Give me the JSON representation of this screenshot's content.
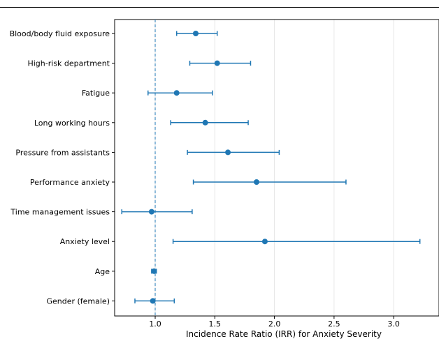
{
  "chart_data": {
    "type": "forest",
    "title": "",
    "xlabel": "Incidence Rate Ratio (IRR) for Anxiety Severity",
    "ylabel": "",
    "xlim": [
      0.66,
      3.38
    ],
    "xticks": [
      1.0,
      1.5,
      2.0,
      2.5,
      3.0
    ],
    "xtick_labels": [
      "1.0",
      "1.5",
      "2.0",
      "2.5",
      "3.0"
    ],
    "reference_line": 1.0,
    "grid": "vertical",
    "color": "#1f77b4",
    "rows": [
      {
        "label": "Blood/body fluid exposure",
        "irr": 1.34,
        "lower": 1.18,
        "upper": 1.52
      },
      {
        "label": "High-risk department",
        "irr": 1.52,
        "lower": 1.29,
        "upper": 1.8
      },
      {
        "label": "Fatigue",
        "irr": 1.18,
        "lower": 0.94,
        "upper": 1.48
      },
      {
        "label": "Long working hours",
        "irr": 1.42,
        "lower": 1.13,
        "upper": 1.78
      },
      {
        "label": "Pressure from assistants",
        "irr": 1.61,
        "lower": 1.27,
        "upper": 2.04
      },
      {
        "label": "Performance anxiety",
        "irr": 1.85,
        "lower": 1.32,
        "upper": 2.6
      },
      {
        "label": "Time management issues",
        "irr": 0.97,
        "lower": 0.72,
        "upper": 1.31
      },
      {
        "label": "Anxiety level",
        "irr": 1.92,
        "lower": 1.15,
        "upper": 3.22
      },
      {
        "label": "Age",
        "irr": 0.99,
        "lower": 0.97,
        "upper": 1.01
      },
      {
        "label": "Gender (female)",
        "irr": 0.98,
        "lower": 0.83,
        "upper": 1.16
      }
    ]
  }
}
